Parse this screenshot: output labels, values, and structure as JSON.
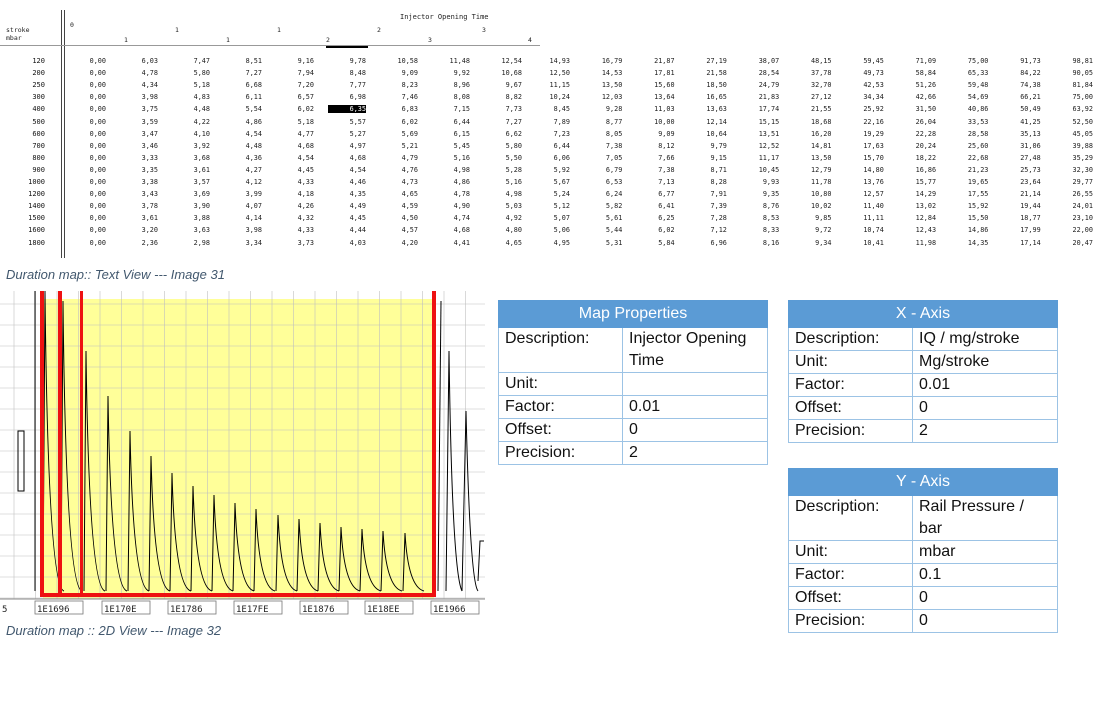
{
  "text_view": {
    "title": "Injector Opening Time",
    "row_header_1": "stroke",
    "row_header_2": "mbar",
    "axis_numbers_top": [
      "0",
      "1",
      "1",
      "2",
      "3"
    ],
    "axis_numbers_bottom": [
      "1",
      "1",
      "2",
      "3",
      "4"
    ],
    "highlighted_cell": "6,35",
    "rows": [
      {
        "label": "120",
        "cells": [
          "0,00",
          "6,03",
          "7,47",
          "8,51",
          "9,16",
          "9,78",
          "10,58",
          "11,48",
          "12,54",
          "14,93",
          "16,79",
          "21,87",
          "27,19",
          "38,07",
          "48,15",
          "59,45",
          "71,09",
          "75,00",
          "91,73",
          "98,81"
        ]
      },
      {
        "label": "200",
        "cells": [
          "0,00",
          "4,78",
          "5,80",
          "7,27",
          "7,94",
          "8,48",
          "9,09",
          "9,92",
          "10,68",
          "12,50",
          "14,53",
          "17,81",
          "21,58",
          "28,54",
          "37,78",
          "49,73",
          "58,84",
          "65,33",
          "84,22",
          "90,05"
        ]
      },
      {
        "label": "250",
        "cells": [
          "0,00",
          "4,34",
          "5,18",
          "6,68",
          "7,20",
          "7,77",
          "8,23",
          "8,96",
          "9,67",
          "11,15",
          "13,50",
          "15,60",
          "18,50",
          "24,79",
          "32,70",
          "42,53",
          "51,26",
          "59,48",
          "74,38",
          "81,84"
        ]
      },
      {
        "label": "300",
        "cells": [
          "0,00",
          "3,98",
          "4,83",
          "6,11",
          "6,57",
          "6,98",
          "7,46",
          "8,08",
          "8,82",
          "10,24",
          "12,03",
          "13,64",
          "16,65",
          "21,83",
          "27,12",
          "34,34",
          "42,66",
          "54,69",
          "66,21",
          "75,00"
        ]
      },
      {
        "label": "400",
        "cells": [
          "0,00",
          "3,75",
          "4,48",
          "5,54",
          "6,02",
          "6,35",
          "6,83",
          "7,15",
          "7,73",
          "8,45",
          "9,28",
          "11,03",
          "13,63",
          "17,74",
          "21,55",
          "25,92",
          "31,50",
          "40,86",
          "50,49",
          "63,92"
        ]
      },
      {
        "label": "500",
        "cells": [
          "0,00",
          "3,59",
          "4,22",
          "4,86",
          "5,18",
          "5,57",
          "6,02",
          "6,44",
          "7,27",
          "7,89",
          "8,77",
          "10,00",
          "12,14",
          "15,15",
          "18,68",
          "22,16",
          "26,04",
          "33,53",
          "41,25",
          "52,50"
        ]
      },
      {
        "label": "600",
        "cells": [
          "0,00",
          "3,47",
          "4,10",
          "4,54",
          "4,77",
          "5,27",
          "5,69",
          "6,15",
          "6,62",
          "7,23",
          "8,05",
          "9,09",
          "10,64",
          "13,51",
          "16,20",
          "19,29",
          "22,28",
          "28,58",
          "35,13",
          "45,05"
        ]
      },
      {
        "label": "700",
        "cells": [
          "0,00",
          "3,46",
          "3,92",
          "4,48",
          "4,68",
          "4,97",
          "5,21",
          "5,45",
          "5,80",
          "6,44",
          "7,38",
          "8,12",
          "9,79",
          "12,52",
          "14,81",
          "17,63",
          "20,24",
          "25,60",
          "31,06",
          "39,88"
        ]
      },
      {
        "label": "800",
        "cells": [
          "0,00",
          "3,33",
          "3,68",
          "4,36",
          "4,54",
          "4,68",
          "4,79",
          "5,16",
          "5,50",
          "6,06",
          "7,05",
          "7,66",
          "9,15",
          "11,17",
          "13,50",
          "15,70",
          "18,22",
          "22,68",
          "27,48",
          "35,29"
        ]
      },
      {
        "label": "900",
        "cells": [
          "0,00",
          "3,35",
          "3,61",
          "4,27",
          "4,45",
          "4,54",
          "4,76",
          "4,98",
          "5,28",
          "5,92",
          "6,79",
          "7,38",
          "8,71",
          "10,45",
          "12,79",
          "14,80",
          "16,86",
          "21,23",
          "25,73",
          "32,30"
        ]
      },
      {
        "label": "1000",
        "cells": [
          "0,00",
          "3,38",
          "3,57",
          "4,12",
          "4,33",
          "4,46",
          "4,73",
          "4,86",
          "5,16",
          "5,67",
          "6,53",
          "7,13",
          "8,28",
          "9,93",
          "11,78",
          "13,76",
          "15,77",
          "19,65",
          "23,64",
          "29,77"
        ]
      },
      {
        "label": "1200",
        "cells": [
          "0,00",
          "3,43",
          "3,69",
          "3,99",
          "4,18",
          "4,35",
          "4,65",
          "4,78",
          "4,98",
          "5,24",
          "6,24",
          "6,77",
          "7,91",
          "9,35",
          "10,80",
          "12,57",
          "14,29",
          "17,55",
          "21,14",
          "26,55"
        ]
      },
      {
        "label": "1400",
        "cells": [
          "0,00",
          "3,78",
          "3,90",
          "4,07",
          "4,26",
          "4,49",
          "4,59",
          "4,90",
          "5,03",
          "5,12",
          "5,82",
          "6,41",
          "7,39",
          "8,76",
          "10,02",
          "11,40",
          "13,02",
          "15,92",
          "19,44",
          "24,01"
        ]
      },
      {
        "label": "1500",
        "cells": [
          "0,00",
          "3,61",
          "3,88",
          "4,14",
          "4,32",
          "4,45",
          "4,50",
          "4,74",
          "4,92",
          "5,07",
          "5,61",
          "6,25",
          "7,28",
          "8,53",
          "9,85",
          "11,11",
          "12,84",
          "15,50",
          "18,77",
          "23,10"
        ]
      },
      {
        "label": "1600",
        "cells": [
          "0,00",
          "3,20",
          "3,63",
          "3,98",
          "4,33",
          "4,44",
          "4,57",
          "4,68",
          "4,80",
          "5,06",
          "5,44",
          "6,02",
          "7,12",
          "8,33",
          "9,72",
          "10,74",
          "12,43",
          "14,86",
          "17,99",
          "22,00"
        ]
      },
      {
        "label": "1800",
        "cells": [
          "0,00",
          "2,36",
          "2,98",
          "3,34",
          "3,73",
          "4,03",
          "4,20",
          "4,41",
          "4,65",
          "4,95",
          "5,31",
          "5,84",
          "6,96",
          "8,16",
          "9,34",
          "10,41",
          "11,98",
          "14,35",
          "17,14",
          "20,47"
        ]
      }
    ]
  },
  "captions": {
    "text_view": "Duration map:: Text View --- Image 31",
    "view_2d": "Duration map :: 2D View --- Image 32"
  },
  "plot_2d": {
    "address_labels": [
      "5",
      "1E1696",
      "1E170E",
      "1E1786",
      "1E17FE",
      "1E1876",
      "1E18EE",
      "1E1966"
    ],
    "colors": {
      "highlight_fill": "#ffff99",
      "highlight_border": "#ee1111",
      "trace": "#000000",
      "grid": "#c0c0c0"
    }
  },
  "map_properties": {
    "title": "Map Properties",
    "rows": [
      {
        "label": "Description:",
        "value": "Injector Opening Time"
      },
      {
        "label": "Unit:",
        "value": ""
      },
      {
        "label": "Factor:",
        "value": "0.01"
      },
      {
        "label": "Offset:",
        "value": "0"
      },
      {
        "label": "Precision:",
        "value": "2"
      }
    ]
  },
  "x_axis": {
    "title": "X - Axis",
    "rows": [
      {
        "label": "Description:",
        "value": "IQ / mg/stroke"
      },
      {
        "label": "Unit:",
        "value": "Mg/stroke"
      },
      {
        "label": "Factor:",
        "value": "0.01"
      },
      {
        "label": "Offset:",
        "value": "0"
      },
      {
        "label": "Precision:",
        "value": "2"
      }
    ]
  },
  "y_axis": {
    "title": "Y - Axis",
    "rows": [
      {
        "label": "Description:",
        "value": "Rail Pressure / bar"
      },
      {
        "label": "Unit:",
        "value": "mbar"
      },
      {
        "label": "Factor:",
        "value": "0.1"
      },
      {
        "label": "Offset:",
        "value": "0"
      },
      {
        "label": "Precision:",
        "value": "0"
      }
    ]
  },
  "header_colors": {
    "table_header": "#5b9bd5",
    "table_border": "#9cc3e5"
  }
}
